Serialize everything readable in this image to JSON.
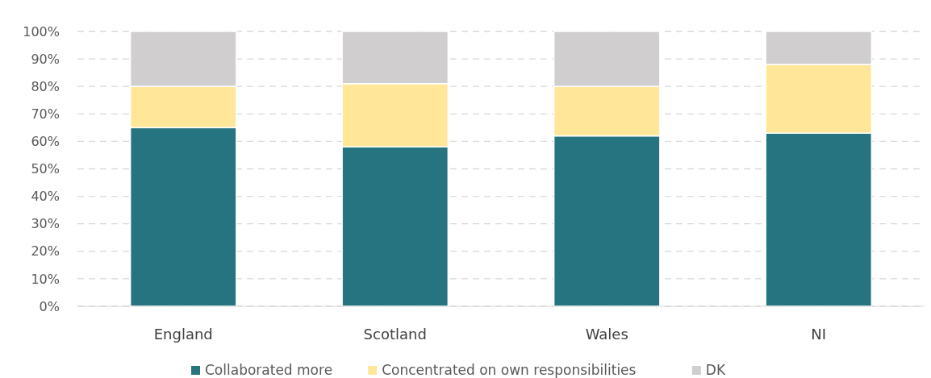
{
  "chart_data": {
    "type": "bar",
    "stacked": true,
    "categories": [
      "England",
      "Scotland",
      "Wales",
      "NI"
    ],
    "series": [
      {
        "name": "Collaborated more",
        "color": "#267480",
        "values": [
          65,
          58,
          62,
          63
        ]
      },
      {
        "name": "Concentrated on own responsibilities",
        "color": "#ffe699",
        "values": [
          15,
          23,
          18,
          25
        ]
      },
      {
        "name": "DK",
        "color": "#d0cece",
        "values": [
          20,
          19,
          20,
          12
        ]
      }
    ],
    "ylim": [
      0,
      100
    ],
    "yticks": [
      {
        "value": 0,
        "label": "0%"
      },
      {
        "value": 10,
        "label": "10%"
      },
      {
        "value": 20,
        "label": "20%"
      },
      {
        "value": 30,
        "label": "30%"
      },
      {
        "value": 40,
        "label": "40%"
      },
      {
        "value": 50,
        "label": "50%"
      },
      {
        "value": 60,
        "label": "60%"
      },
      {
        "value": 70,
        "label": "70%"
      },
      {
        "value": 80,
        "label": "80%"
      },
      {
        "value": 90,
        "label": "90%"
      },
      {
        "value": 100,
        "label": "100%"
      }
    ],
    "grid": "y",
    "legend": "bottom"
  }
}
